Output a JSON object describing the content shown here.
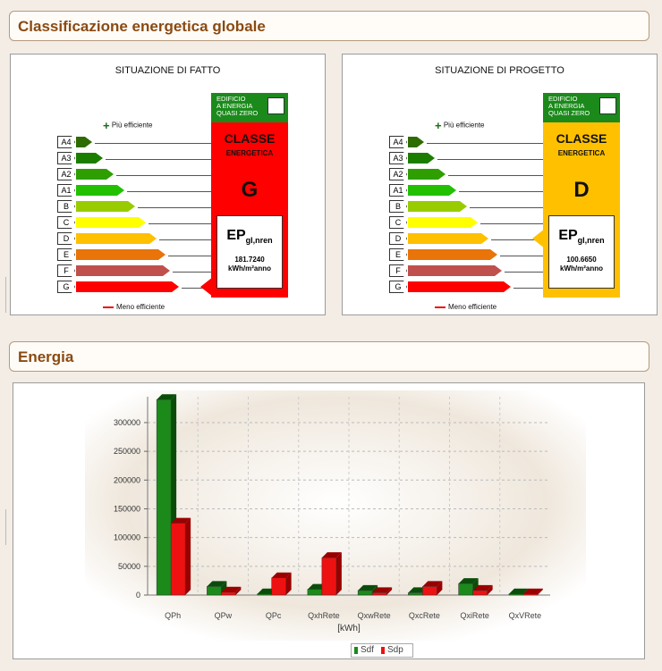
{
  "sections": {
    "energy_class_title": "Classificazione energetica globale",
    "energy_title": "Energia"
  },
  "labels_panels": [
    {
      "title": "SITUAZIONE DI FATTO",
      "more_efficient": "Più efficiente",
      "less_efficient": "Meno efficiente",
      "nzeb": [
        "EDIFICIO",
        "A ENERGIA",
        "QUASI ZERO"
      ],
      "class_title": "CLASSE",
      "class_sub": "ENERGETICA",
      "class_letter": "G",
      "class_color": "#ff0000",
      "ep_label": "EP",
      "ep_sub": "gl,nren",
      "ep_value": "181.7240",
      "ep_unit": "kWh/m²anno"
    },
    {
      "title": "SITUAZIONE DI PROGETTO",
      "more_efficient": "Più efficiente",
      "less_efficient": "Meno efficiente",
      "nzeb": [
        "EDIFICIO",
        "A ENERGIA",
        "QUASI ZERO"
      ],
      "class_title": "CLASSE",
      "class_sub": "ENERGETICA",
      "class_letter": "D",
      "class_color": "#ffc000",
      "ep_label": "EP",
      "ep_sub": "gl,nren",
      "ep_value": "100.6650",
      "ep_unit": "kWh/m²anno"
    }
  ],
  "scale_rows": [
    {
      "label": "A4",
      "color": "#2e6b00",
      "len": 0.18
    },
    {
      "label": "A3",
      "color": "#1b7d00",
      "len": 0.3
    },
    {
      "label": "A2",
      "color": "#2e9e00",
      "len": 0.42
    },
    {
      "label": "A1",
      "color": "#22c000",
      "len": 0.54
    },
    {
      "label": "B",
      "color": "#99cc00",
      "len": 0.66
    },
    {
      "label": "C",
      "color": "#ffff00",
      "len": 0.78
    },
    {
      "label": "D",
      "color": "#ffc000",
      "len": 0.9
    },
    {
      "label": "E",
      "color": "#e8740a",
      "len": 1.0
    },
    {
      "label": "F",
      "color": "#c0504d",
      "len": 1.05
    },
    {
      "label": "G",
      "color": "#ff0000",
      "len": 1.15
    }
  ],
  "chart_data": {
    "type": "bar",
    "categories": [
      "QPh",
      "QPw",
      "QPc",
      "QxhRete",
      "QxwRete",
      "QxcRete",
      "QxiRete",
      "QxVRete"
    ],
    "series": [
      {
        "name": "Sdf",
        "color": "#1b8a1b",
        "values": [
          340000,
          15000,
          2000,
          10000,
          8000,
          4000,
          20000,
          2000
        ]
      },
      {
        "name": "Sdp",
        "color": "#ee1111",
        "values": [
          125000,
          5000,
          30000,
          65000,
          4000,
          15000,
          8000,
          2000
        ]
      }
    ],
    "xlabel": "[kWh]",
    "ylabel": "",
    "ylim": [
      0,
      345000
    ],
    "yticks": [
      "0",
      "50000",
      "100000",
      "150000",
      "200000",
      "250000",
      "300000"
    ],
    "legend": "bottom"
  }
}
